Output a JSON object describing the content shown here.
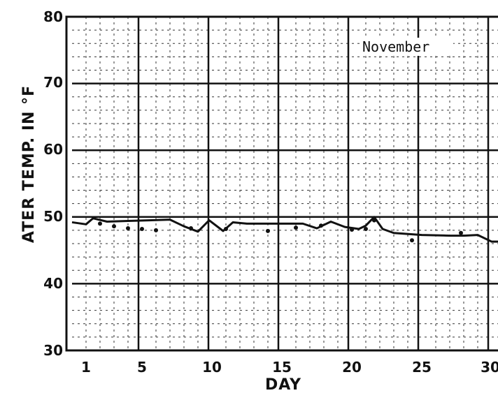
{
  "chart_data": {
    "type": "line",
    "title": "",
    "xlabel": "DAY",
    "ylabel": "ATER TEMP. IN °F",
    "annotation": "November",
    "xlim": [
      0,
      31
    ],
    "ylim": [
      30,
      80
    ],
    "x_ticks": [
      1,
      5,
      10,
      15,
      20,
      25,
      30
    ],
    "x_tick_labels": [
      "1",
      "5",
      "10",
      "15",
      "20",
      "25",
      "30"
    ],
    "y_ticks": [
      30,
      40,
      50,
      60,
      70,
      80
    ],
    "y_tick_labels": [
      "30",
      "40",
      "50",
      "60",
      "70",
      "80"
    ],
    "grid": true,
    "series": [
      {
        "name": "",
        "line_x": [
          0,
          1,
          1.5,
          2.5,
          4,
          5.5,
          7,
          8,
          9,
          9.8,
          10.8,
          11.5,
          12.5,
          14,
          15.5,
          16.5,
          17.5,
          18.5,
          19.5,
          20.5,
          21,
          21.6,
          22.2,
          23,
          25,
          27,
          28,
          29,
          30,
          31
        ],
        "line_y": [
          49.2,
          48.9,
          49.8,
          49.3,
          49.4,
          49.5,
          49.6,
          48.6,
          47.8,
          49.5,
          47.9,
          49.2,
          49.0,
          49.0,
          49.0,
          49.0,
          48.3,
          49.3,
          48.5,
          48.2,
          48.7,
          50.0,
          48.2,
          47.6,
          47.3,
          47.2,
          47.2,
          47.3,
          46.3,
          46.3
        ],
        "point_x": [
          2,
          3,
          4,
          5,
          6,
          8.5,
          11,
          14,
          16,
          17.8,
          20,
          21,
          21.6,
          24.3,
          27.8
        ],
        "point_y": [
          49.0,
          48.6,
          48.3,
          48.2,
          48.0,
          48.3,
          48.2,
          47.9,
          48.4,
          48.7,
          48.1,
          48.2,
          49.5,
          46.5,
          47.6
        ]
      }
    ]
  }
}
